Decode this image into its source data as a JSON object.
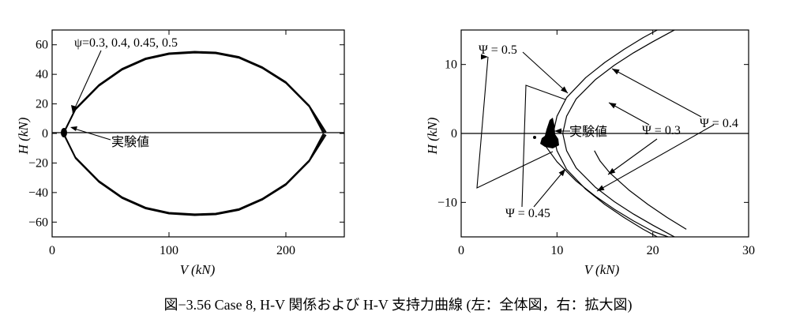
{
  "caption": "図−3.56 Case 8, H-V 関係および H-V 支持力曲線 (左：全体図，右：拡大図)",
  "chart_data": [
    {
      "type": "line",
      "title": "",
      "xlabel": "V (kN)",
      "ylabel": "H (kN)",
      "xlim": [
        0,
        250
      ],
      "ylim": [
        -70,
        70
      ],
      "xticks": [
        0,
        100,
        200
      ],
      "yticks": [
        -60,
        -40,
        -20,
        0,
        20,
        40,
        60
      ],
      "series": [
        {
          "name": "Ψ=0.3",
          "x": [
            10,
            20,
            40,
            60,
            80,
            100,
            122,
            140,
            160,
            180,
            200,
            220,
            232
          ],
          "y": [
            0,
            16,
            32,
            43,
            50,
            53.5,
            54.5,
            54,
            51,
            44,
            34,
            18,
            0
          ]
        },
        {
          "name": "Ψ=0.4",
          "x": [
            10,
            20,
            40,
            60,
            80,
            100,
            122,
            140,
            160,
            180,
            200,
            220,
            232
          ],
          "y": [
            0,
            16,
            32,
            43,
            50,
            53.5,
            54.5,
            54,
            51,
            44,
            34,
            18,
            0
          ]
        },
        {
          "name": "Ψ=0.45",
          "x": [
            10,
            20,
            40,
            60,
            80,
            100,
            122,
            140,
            160,
            180,
            200,
            220,
            232
          ],
          "y": [
            0,
            16,
            32,
            43,
            50,
            53.5,
            54.5,
            54,
            51,
            44,
            34,
            18,
            0
          ]
        },
        {
          "name": "Ψ=0.5",
          "x": [
            10,
            20,
            40,
            60,
            80,
            100,
            122,
            140,
            160,
            180,
            200,
            220,
            232
          ],
          "y": [
            0,
            16,
            32,
            43,
            50,
            53.5,
            54.5,
            54,
            51,
            44,
            34,
            18,
            0
          ]
        },
        {
          "name": "実験値",
          "x": [
            8,
            9,
            10
          ],
          "y": [
            -2,
            0,
            2
          ]
        }
      ],
      "annotations": [
        {
          "text": "ψ=0.3, 0.4, 0.45, 0.5"
        },
        {
          "text": "実験値"
        }
      ]
    },
    {
      "type": "line",
      "title": "",
      "xlabel": "V (kN)",
      "ylabel": "H (kN)",
      "xlim": [
        0,
        30
      ],
      "ylim": [
        -15,
        15
      ],
      "xticks": [
        0,
        10,
        20,
        30
      ],
      "yticks": [
        -10,
        0,
        10
      ],
      "series": [
        {
          "name": "Ψ=0.5",
          "x": [
            9.6,
            10,
            11,
            13,
            15,
            17,
            19,
            21,
            22.5
          ],
          "y": [
            0,
            2.5,
            5.2,
            8.1,
            10.3,
            12.2,
            13.9,
            15.4,
            16.4
          ]
        },
        {
          "name": "Ψ=0.45",
          "x": [
            10.6,
            11,
            12,
            14,
            16,
            18,
            20,
            22,
            23.5
          ],
          "y": [
            0,
            2.5,
            5.0,
            7.8,
            9.9,
            11.7,
            13.3,
            14.8,
            15.9
          ]
        },
        {
          "name": "Ψ=0.4",
          "x": [
            13.9,
            14.5,
            15.5,
            17.5,
            19.5,
            21.5,
            23.5
          ],
          "y": [
            -2.5,
            -4.0,
            -5.7,
            -8.2,
            -10.3,
            -12.2,
            -13.9
          ]
        },
        {
          "name": "Ψ=0.3",
          "x": [
            8.5,
            9,
            10,
            12,
            14,
            16,
            18,
            20,
            21.6
          ],
          "y": [
            -1.2,
            -2.2,
            -4.1,
            -6.9,
            -9.1,
            -11.0,
            -12.7,
            -14.2,
            -15
          ]
        },
        {
          "name": "実験値",
          "x": [
            8.2,
            8.6,
            9.0,
            9.4,
            9.8
          ],
          "y": [
            -1.5,
            -0.5,
            0.5,
            1.5,
            2.5
          ]
        }
      ],
      "annotations": [
        {
          "text": "Ψ = 0.5"
        },
        {
          "text": "Ψ = 0.45"
        },
        {
          "text": "Ψ = 0.4"
        },
        {
          "text": "Ψ = 0.3"
        },
        {
          "text": "実験値"
        }
      ]
    }
  ]
}
